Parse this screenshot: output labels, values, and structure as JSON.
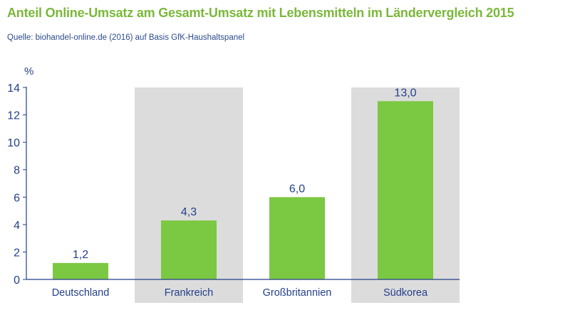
{
  "header": {
    "title": "Anteil Online-Umsatz am Gesamt-Umsatz mit Lebensmitteln im Ländervergleich 2015",
    "source": "Quelle: biohandel-online.de (2016) auf Basis GfK-Haushaltspanel"
  },
  "colors": {
    "title": "#7ab83a",
    "source": "#2c4a8c",
    "bar": "#7bc843",
    "band": "#dcdcdc",
    "axis": "#243f8a"
  },
  "chart_data": {
    "type": "bar",
    "title": "Anteil Online-Umsatz am Gesamt-Umsatz mit Lebensmitteln im Ländervergleich 2015",
    "ylabel": "%",
    "xlabel": "",
    "categories": [
      "Deutschland",
      "Frankreich",
      "Großbritannien",
      "Südkorea"
    ],
    "values": [
      1.2,
      4.3,
      6.0,
      13.0
    ],
    "value_labels": [
      "1,2",
      "4,3",
      "6,0",
      "13,0"
    ],
    "ylim": [
      0,
      14
    ],
    "yticks": [
      0,
      2,
      4,
      6,
      8,
      10,
      12,
      14
    ],
    "shaded_categories": [
      1,
      3
    ],
    "grid": false,
    "legend": "none"
  }
}
